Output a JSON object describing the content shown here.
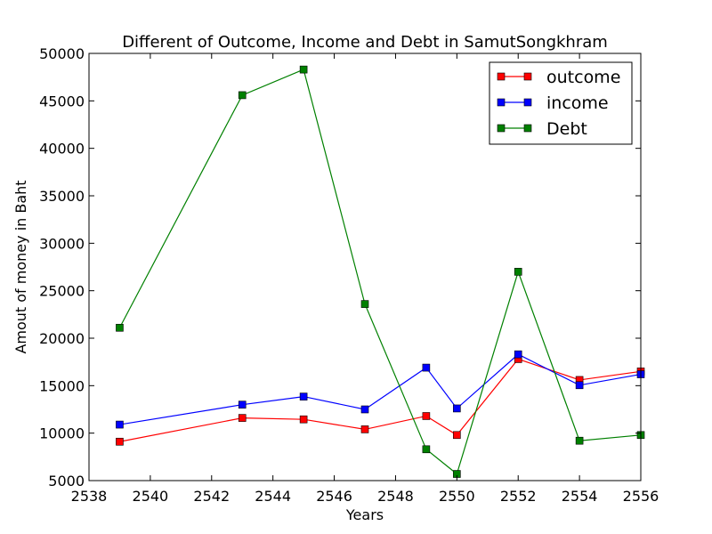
{
  "chart_data": {
    "type": "line",
    "title": "Different of Outcome, Income and Debt in SamutSongkhram",
    "xlabel": "Years",
    "ylabel": "Amout of money in Baht",
    "xlim": [
      2538,
      2556
    ],
    "ylim": [
      5000,
      50000
    ],
    "x_ticks": [
      2538,
      2540,
      2542,
      2544,
      2546,
      2548,
      2550,
      2552,
      2554,
      2556
    ],
    "y_ticks": [
      5000,
      10000,
      15000,
      20000,
      25000,
      30000,
      35000,
      40000,
      45000,
      50000
    ],
    "grid": false,
    "legend_position": "top-right",
    "x": [
      2539,
      2543,
      2545,
      2547,
      2549,
      2550,
      2552,
      2554,
      2556
    ],
    "series": [
      {
        "name": "outcome",
        "color": "#ff0000",
        "marker": "square",
        "values": [
          9100,
          11600,
          11450,
          10400,
          11800,
          9800,
          17800,
          15600,
          16500
        ]
      },
      {
        "name": "income",
        "color": "#0000ff",
        "marker": "square",
        "values": [
          10900,
          13000,
          13850,
          12500,
          16900,
          12600,
          18300,
          15050,
          16200
        ]
      },
      {
        "name": "Debt",
        "color": "#008000",
        "marker": "square",
        "values": [
          21100,
          45600,
          48300,
          23600,
          8300,
          5700,
          27000,
          9200,
          9800
        ]
      }
    ]
  }
}
